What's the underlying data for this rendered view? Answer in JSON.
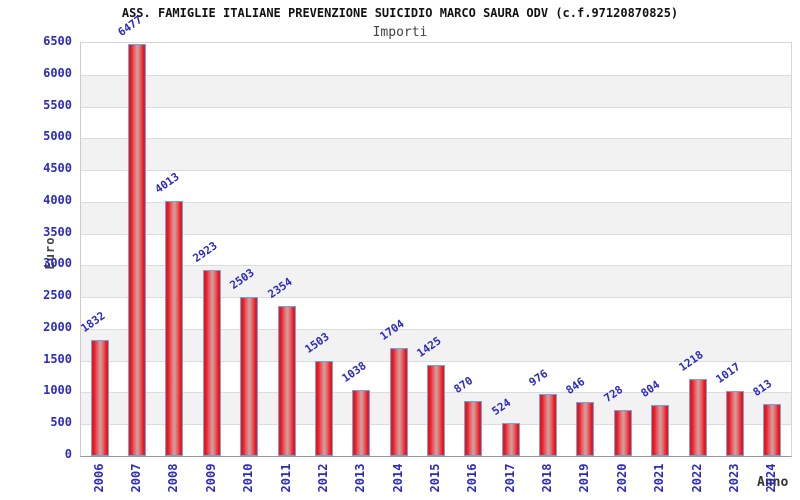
{
  "header": {
    "title": "ASS. FAMIGLIE ITALIANE PREVENZIONE SUICIDIO MARCO SAURA ODV (c.f.97120870825)",
    "subtitle": "Importi"
  },
  "chart_data": {
    "type": "bar",
    "title": "ASS. FAMIGLIE ITALIANE PREVENZIONE SUICIDIO MARCO SAURA ODV (c.f.97120870825)",
    "subtitle": "Importi",
    "categories": [
      "2006",
      "2007",
      "2008",
      "2009",
      "2010",
      "2011",
      "2012",
      "2013",
      "2014",
      "2015",
      "2016",
      "2017",
      "2018",
      "2019",
      "2020",
      "2021",
      "2022",
      "2023",
      "2024"
    ],
    "values": [
      1832,
      6477,
      4013,
      2923,
      2503,
      2354,
      1503,
      1038,
      1704,
      1425,
      870,
      524,
      976,
      846,
      728,
      804,
      1218,
      1017,
      813
    ],
    "xlabel": "Anno",
    "ylabel": "Euro",
    "ylim": [
      0,
      6500
    ],
    "ytick_step": 500,
    "yticks": [
      0,
      500,
      1000,
      1500,
      2000,
      2500,
      3000,
      3500,
      4000,
      4500,
      5000,
      5500,
      6000,
      6500
    ],
    "grid": true,
    "legend": "none",
    "bands": "alternating horizontal 500-unit bands, white then gray from top",
    "value_labels": "blue, rotated, above each bar",
    "x_labels_rotation": -90
  },
  "colors": {
    "label_blue": "#2b2bc4",
    "bar_edge_red": "#e6191f",
    "bar_mid_pink": "#d3989a",
    "bar_border_blue": "#73a3e3",
    "band_gray": "#f2f2f2",
    "gridline": "#dcdcdc",
    "title_color": "#111111",
    "subtitle_color": "#444444",
    "axis_label_color": "#444444"
  }
}
